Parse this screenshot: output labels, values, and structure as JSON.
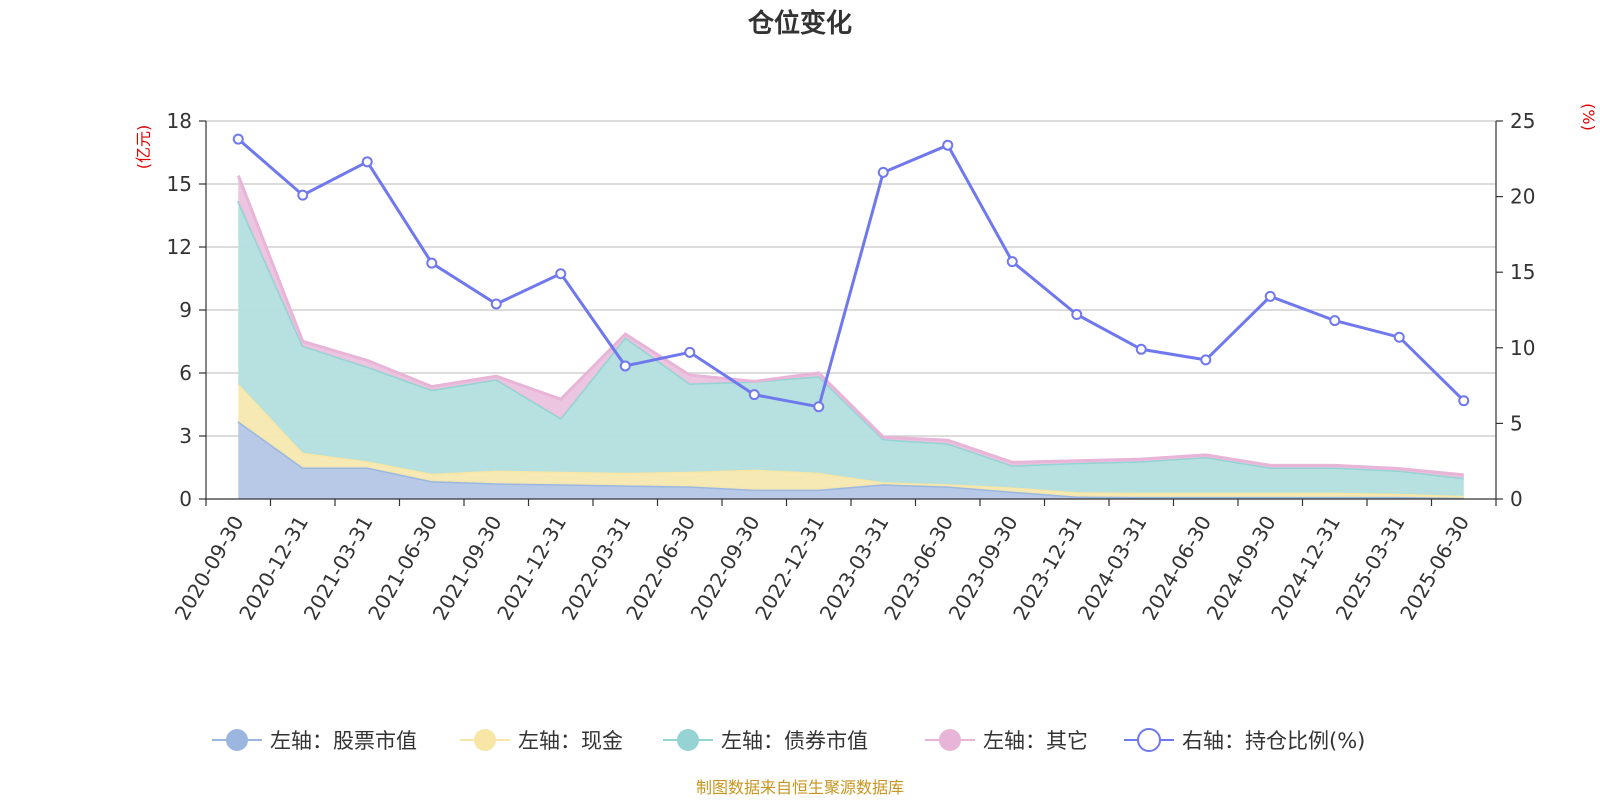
{
  "chart_data": {
    "type": "area",
    "title": "仓位变化",
    "left_axis_unit": "(亿元)",
    "right_axis_unit": "(%)",
    "left_ylim": [
      0,
      18
    ],
    "left_ticks": [
      "0",
      "3",
      "6",
      "9",
      "12",
      "15",
      "18"
    ],
    "right_ylim": [
      0,
      25
    ],
    "right_ticks": [
      "0",
      "5",
      "10",
      "15",
      "20",
      "25"
    ],
    "grid": true,
    "legend_position": "bottom",
    "stacked": true,
    "categories": [
      "2020-09-30",
      "2020-12-31",
      "2021-03-31",
      "2021-06-30",
      "2021-09-30",
      "2021-12-31",
      "2022-03-31",
      "2022-06-30",
      "2022-09-30",
      "2022-12-31",
      "2023-03-31",
      "2023-06-30",
      "2023-09-30",
      "2023-12-31",
      "2024-03-31",
      "2024-06-30",
      "2024-09-30",
      "2024-12-31",
      "2025-03-31",
      "2025-06-30"
    ],
    "series": [
      {
        "name": "左轴：股票市值",
        "axis": "left",
        "kind": "area",
        "color": "#9bb7e0",
        "fill": "#b3c6e6",
        "values": [
          3.7,
          1.5,
          1.5,
          0.85,
          0.75,
          0.7,
          0.65,
          0.6,
          0.45,
          0.45,
          0.7,
          0.6,
          0.35,
          0.12,
          0.1,
          0.1,
          0.1,
          0.1,
          0.1,
          0.05
        ]
      },
      {
        "name": "左轴：现金",
        "axis": "left",
        "kind": "area",
        "color": "#f7e6a6",
        "fill": "#f7e8b0",
        "values": [
          1.8,
          0.7,
          0.3,
          0.35,
          0.6,
          0.6,
          0.6,
          0.7,
          0.95,
          0.8,
          0.1,
          0.1,
          0.2,
          0.2,
          0.2,
          0.2,
          0.2,
          0.2,
          0.15,
          0.1
        ]
      },
      {
        "name": "左轴：债券市值",
        "axis": "left",
        "kind": "area",
        "color": "#95d3d4",
        "fill": "#b3dfdf",
        "values": [
          8.7,
          5.1,
          4.5,
          4.0,
          4.35,
          2.55,
          6.45,
          4.2,
          4.2,
          4.6,
          2.05,
          1.95,
          1.05,
          1.4,
          1.5,
          1.7,
          1.2,
          1.2,
          1.1,
          0.85
        ]
      },
      {
        "name": "左轴：其它",
        "axis": "left",
        "kind": "area",
        "color": "#e8b4d8",
        "fill": "#ebc3de",
        "values": [
          1.2,
          0.2,
          0.3,
          0.15,
          0.15,
          0.9,
          0.15,
          0.4,
          0.0,
          0.15,
          0.1,
          0.15,
          0.15,
          0.1,
          0.1,
          0.1,
          0.1,
          0.1,
          0.1,
          0.15
        ]
      },
      {
        "name": "右轴：持仓比例(%)",
        "axis": "right",
        "kind": "line",
        "color": "#7078ee",
        "values": [
          23.8,
          20.1,
          22.3,
          15.6,
          12.9,
          14.9,
          8.8,
          9.7,
          6.9,
          6.1,
          21.6,
          23.4,
          15.7,
          12.2,
          9.9,
          9.2,
          13.4,
          11.8,
          10.7,
          6.5
        ]
      }
    ],
    "source_note": "制图数据来自恒生聚源数据库"
  }
}
